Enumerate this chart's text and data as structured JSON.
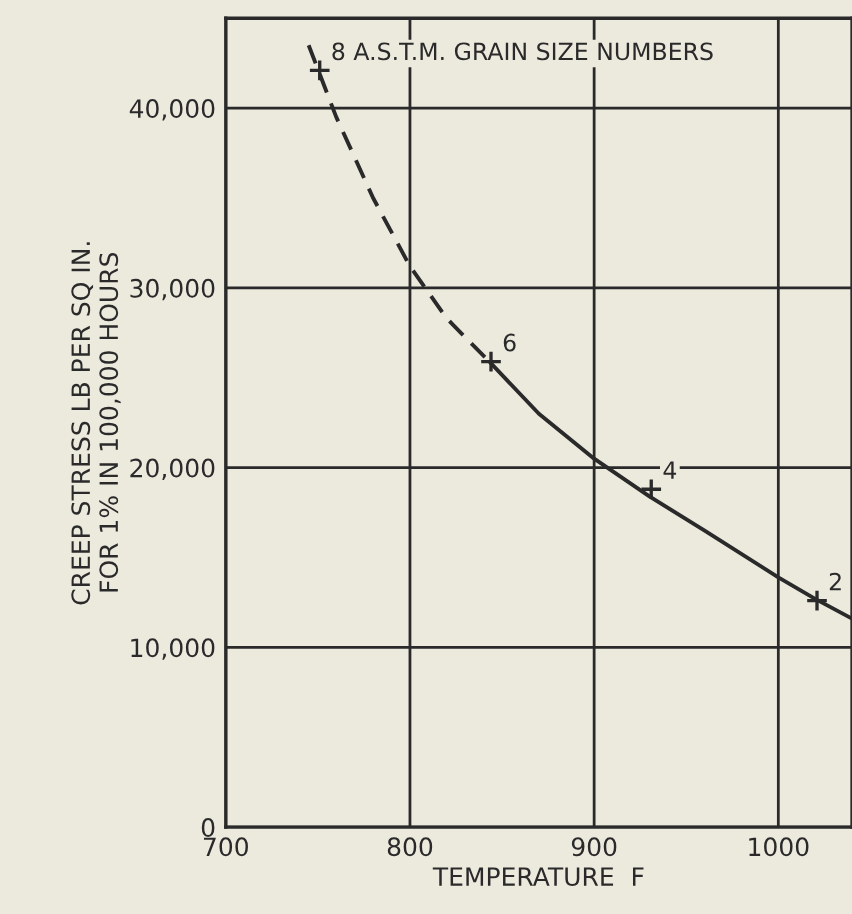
{
  "chart_data": {
    "type": "line",
    "xlabel": "TEMPERATURE  F",
    "ylabel": "CREEP STRESS LB PER SQ IN.\nFOR 1% IN 100,000 HOURS",
    "xlim": [
      700,
      1040
    ],
    "xticks": [
      700,
      800,
      900,
      1000
    ],
    "ylim": [
      0,
      45000
    ],
    "yticks": [
      0,
      {
        "value": 10000,
        "label": "10,000"
      },
      {
        "value": 20000,
        "label": "20,000"
      },
      {
        "value": 30000,
        "label": "30,000"
      },
      {
        "value": 40000,
        "label": "40,000"
      }
    ],
    "grid": true,
    "series": [
      {
        "line_style": "dashed",
        "color": "#2a2a2a",
        "x": [
          745,
          760,
          780,
          800,
          820,
          844
        ],
        "values": [
          43500,
          39500,
          35000,
          31200,
          28300,
          25800
        ]
      },
      {
        "line_style": "solid",
        "color": "#2a2a2a",
        "x": [
          844,
          870,
          900,
          930,
          960,
          1000,
          1020,
          1040
        ],
        "values": [
          25800,
          23000,
          20500,
          18400,
          16500,
          13900,
          12700,
          11600
        ]
      },
      {
        "type": "scatter",
        "marker": "cross",
        "color": "#2a2a2a",
        "x": [
          751,
          844,
          931,
          1021
        ],
        "values": [
          42100,
          25900,
          18800,
          12600
        ]
      }
    ],
    "annotations": [
      {
        "text": "8 A.S.T.M. GRAIN SIZE NUMBERS",
        "x": 751,
        "y": 42100
      },
      {
        "text": "6",
        "x": 844,
        "y": 25900
      },
      {
        "text": "4",
        "x": 931,
        "y": 18800
      },
      {
        "text": "2",
        "x": 1021,
        "y": 12600
      }
    ]
  }
}
